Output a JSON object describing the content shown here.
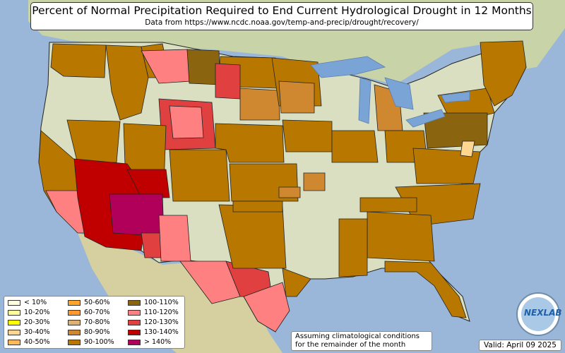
{
  "title": "Percent of Normal Precipitation Required to End Current Hydrological Drought in 12 Months",
  "subtitle": "Data from https://www.ncdc.noaa.gov/temp-and-precip/drought/recovery/",
  "legend": [
    {
      "label": "< 10%",
      "color": "#ffffe0"
    },
    {
      "label": "10-20%",
      "color": "#ffff9a"
    },
    {
      "label": "20-30%",
      "color": "#ffff00"
    },
    {
      "label": "30-40%",
      "color": "#ffd690"
    },
    {
      "label": "40-50%",
      "color": "#ffb85a"
    },
    {
      "label": "50-60%",
      "color": "#ffa52a"
    },
    {
      "label": "60-70%",
      "color": "#ff9a2a"
    },
    {
      "label": "70-80%",
      "color": "#e0b070"
    },
    {
      "label": "80-90%",
      "color": "#d08830"
    },
    {
      "label": "90-100%",
      "color": "#b87800"
    },
    {
      "label": "100-110%",
      "color": "#8b6410"
    },
    {
      "label": "110-120%",
      "color": "#ff8080"
    },
    {
      "label": "120-130%",
      "color": "#e04040"
    },
    {
      "label": "130-140%",
      "color": "#c00000"
    },
    {
      "label": "> 140%",
      "color": "#b0005a"
    }
  ],
  "note": {
    "line1": "Assuming climatological conditions",
    "line2": "for the remainder of the month"
  },
  "valid": "Valid: April 09 2025",
  "logo_text": "NEXLAB",
  "colors": {
    "ocean": "#9ab6d8",
    "land": "#d9dfc0",
    "lakes": "#7aa4d6",
    "border": "#222222"
  }
}
